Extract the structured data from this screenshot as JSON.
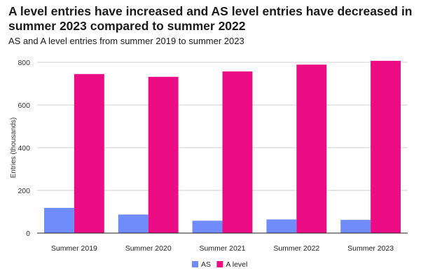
{
  "header": {
    "title": "A level entries have increased and AS level entries have decreased in summer 2023 compared to summer 2022",
    "subtitle": "AS and A level entries from summer 2019 to summer 2023"
  },
  "chart_data": {
    "type": "bar",
    "title": "A level entries have increased and AS level entries have decreased in summer 2023 compared to summer 2022",
    "subtitle": "AS and A level entries from summer 2019 to summer 2023",
    "xlabel": "",
    "ylabel": "Entries (thousands)",
    "categories": [
      "Summer 2019",
      "Summer 2020",
      "Summer 2021",
      "Summer 2022",
      "Summer 2023"
    ],
    "series": [
      {
        "name": "AS",
        "color": "#6f8cfa",
        "values": [
          118,
          87,
          58,
          64,
          62
        ]
      },
      {
        "name": "A level",
        "color": "#ec0c83",
        "values": [
          745,
          732,
          757,
          789,
          807
        ]
      }
    ],
    "ylim": [
      0,
      800
    ],
    "yticks": [
      0,
      200,
      400,
      600,
      800
    ],
    "grid": true,
    "legend": "bottom-center"
  }
}
